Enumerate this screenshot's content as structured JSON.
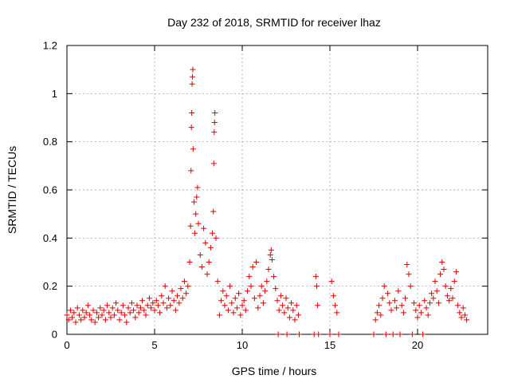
{
  "chart_data": {
    "type": "scatter",
    "title": "Day 232 of 2018, SRMTID for receiver lhaz",
    "xlabel": "GPS time / hours",
    "ylabel": "SRMTID / TECUs",
    "xlim": [
      0,
      24
    ],
    "ylim": [
      0,
      1.2
    ],
    "x_ticks": [
      0,
      5,
      10,
      15,
      20
    ],
    "y_ticks": [
      0,
      0.2,
      0.4,
      0.6,
      0.8,
      1,
      1.2
    ],
    "x_tick_labels": [
      "0",
      "5",
      "10",
      "15",
      "20"
    ],
    "y_tick_labels": [
      "0",
      "0.2",
      "0.4",
      "0.6",
      "0.8",
      "1",
      "1.2"
    ],
    "grid": true,
    "marker": "+",
    "color": "#e00000",
    "series": [
      {
        "name": "SRMTID",
        "points": [
          [
            0.0,
            0.08
          ],
          [
            0.1,
            0.06
          ],
          [
            0.2,
            0.1
          ],
          [
            0.3,
            0.07
          ],
          [
            0.4,
            0.09
          ],
          [
            0.5,
            0.05
          ],
          [
            0.6,
            0.11
          ],
          [
            0.7,
            0.08
          ],
          [
            0.8,
            0.06
          ],
          [
            0.9,
            0.1
          ],
          [
            1.0,
            0.07
          ],
          [
            1.1,
            0.09
          ],
          [
            1.2,
            0.12
          ],
          [
            1.3,
            0.08
          ],
          [
            1.4,
            0.06
          ],
          [
            1.5,
            0.1
          ],
          [
            1.6,
            0.05
          ],
          [
            1.7,
            0.09
          ],
          [
            1.8,
            0.07
          ],
          [
            1.9,
            0.11
          ],
          [
            2.0,
            0.08
          ],
          [
            2.1,
            0.1
          ],
          [
            2.2,
            0.06
          ],
          [
            2.3,
            0.12
          ],
          [
            2.4,
            0.09
          ],
          [
            2.5,
            0.07
          ],
          [
            2.6,
            0.11
          ],
          [
            2.7,
            0.08
          ],
          [
            2.8,
            0.13
          ],
          [
            2.9,
            0.1
          ],
          [
            3.0,
            0.06
          ],
          [
            3.1,
            0.09
          ],
          [
            3.2,
            0.12
          ],
          [
            3.3,
            0.08
          ],
          [
            3.4,
            0.05
          ],
          [
            3.5,
            0.11
          ],
          [
            3.6,
            0.09
          ],
          [
            3.7,
            0.13
          ],
          [
            3.8,
            0.1
          ],
          [
            3.9,
            0.07
          ],
          [
            4.0,
            0.12
          ],
          [
            4.1,
            0.09
          ],
          [
            4.2,
            0.11
          ],
          [
            4.3,
            0.14
          ],
          [
            4.4,
            0.1
          ],
          [
            4.5,
            0.08
          ],
          [
            4.6,
            0.12
          ],
          [
            4.7,
            0.15
          ],
          [
            4.8,
            0.11
          ],
          [
            4.9,
            0.13
          ],
          [
            5.0,
            0.1
          ],
          [
            5.1,
            0.14
          ],
          [
            5.2,
            0.12
          ],
          [
            5.3,
            0.09
          ],
          [
            5.4,
            0.16
          ],
          [
            5.5,
            0.13
          ],
          [
            5.6,
            0.2
          ],
          [
            5.7,
            0.11
          ],
          [
            5.8,
            0.15
          ],
          [
            5.9,
            0.12
          ],
          [
            6.0,
            0.18
          ],
          [
            6.1,
            0.14
          ],
          [
            6.2,
            0.1
          ],
          [
            6.3,
            0.16
          ],
          [
            6.4,
            0.13
          ],
          [
            6.5,
            0.19
          ],
          [
            6.6,
            0.15
          ],
          [
            6.7,
            0.22
          ],
          [
            6.8,
            0.17
          ],
          [
            6.9,
            0.2
          ],
          [
            7.0,
            0.3
          ],
          [
            7.05,
            0.45
          ],
          [
            7.08,
            0.68
          ],
          [
            7.1,
            0.86
          ],
          [
            7.12,
            0.92
          ],
          [
            7.14,
            1.04
          ],
          [
            7.16,
            1.07
          ],
          [
            7.18,
            1.1
          ],
          [
            7.2,
            0.77
          ],
          [
            7.25,
            0.55
          ],
          [
            7.3,
            0.42
          ],
          [
            7.35,
            0.5
          ],
          [
            7.4,
            0.57
          ],
          [
            7.45,
            0.61
          ],
          [
            7.5,
            0.46
          ],
          [
            7.6,
            0.33
          ],
          [
            7.7,
            0.28
          ],
          [
            7.8,
            0.44
          ],
          [
            7.9,
            0.38
          ],
          [
            8.0,
            0.25
          ],
          [
            8.1,
            0.3
          ],
          [
            8.2,
            0.36
          ],
          [
            8.3,
            0.42
          ],
          [
            8.35,
            0.51
          ],
          [
            8.38,
            0.71
          ],
          [
            8.4,
            0.84
          ],
          [
            8.42,
            0.88
          ],
          [
            8.44,
            0.92
          ],
          [
            8.5,
            0.4
          ],
          [
            8.6,
            0.22
          ],
          [
            8.7,
            0.08
          ],
          [
            8.8,
            0.14
          ],
          [
            8.9,
            0.18
          ],
          [
            9.0,
            0.12
          ],
          [
            9.1,
            0.16
          ],
          [
            9.2,
            0.1
          ],
          [
            9.3,
            0.2
          ],
          [
            9.4,
            0.13
          ],
          [
            9.5,
            0.09
          ],
          [
            9.6,
            0.15
          ],
          [
            9.7,
            0.11
          ],
          [
            9.8,
            0.17
          ],
          [
            9.9,
            0.08
          ],
          [
            10.0,
            0.12
          ],
          [
            10.1,
            0.14
          ],
          [
            10.2,
            0.1
          ],
          [
            10.3,
            0.18
          ],
          [
            10.4,
            0.24
          ],
          [
            10.5,
            0.2
          ],
          [
            10.6,
            0.28
          ],
          [
            10.7,
            0.15
          ],
          [
            10.8,
            0.3
          ],
          [
            10.9,
            0.11
          ],
          [
            11.0,
            0.16
          ],
          [
            11.1,
            0.2
          ],
          [
            11.2,
            0.13
          ],
          [
            11.3,
            0.18
          ],
          [
            11.4,
            0.22
          ],
          [
            11.5,
            0.27
          ],
          [
            11.6,
            0.33
          ],
          [
            11.65,
            0.35
          ],
          [
            11.7,
            0.31
          ],
          [
            11.8,
            0.24
          ],
          [
            11.9,
            0.19
          ],
          [
            12.0,
            0.14
          ],
          [
            12.05,
            0.0
          ],
          [
            12.1,
            0.1
          ],
          [
            12.2,
            0.16
          ],
          [
            12.3,
            0.12
          ],
          [
            12.4,
            0.09
          ],
          [
            12.5,
            0.15
          ],
          [
            12.55,
            0.0
          ],
          [
            12.6,
            0.11
          ],
          [
            12.7,
            0.07
          ],
          [
            12.8,
            0.13
          ],
          [
            12.9,
            0.1
          ],
          [
            13.0,
            0.06
          ],
          [
            13.1,
            0.12
          ],
          [
            13.2,
            0.08
          ],
          [
            13.25,
            0.0
          ],
          [
            14.1,
            0.0
          ],
          [
            14.2,
            0.24
          ],
          [
            14.25,
            0.2
          ],
          [
            14.3,
            0.12
          ],
          [
            14.35,
            0.0
          ],
          [
            15.0,
            0.0
          ],
          [
            15.1,
            0.22
          ],
          [
            15.2,
            0.16
          ],
          [
            15.3,
            0.12
          ],
          [
            15.4,
            0.09
          ],
          [
            15.5,
            0.0
          ],
          [
            17.5,
            0.0
          ],
          [
            17.6,
            0.06
          ],
          [
            17.7,
            0.09
          ],
          [
            17.8,
            0.12
          ],
          [
            17.9,
            0.08
          ],
          [
            18.0,
            0.15
          ],
          [
            18.1,
            0.2
          ],
          [
            18.2,
            0.0
          ],
          [
            18.3,
            0.17
          ],
          [
            18.4,
            0.13
          ],
          [
            18.5,
            0.1
          ],
          [
            18.6,
            0.0
          ],
          [
            18.7,
            0.14
          ],
          [
            18.8,
            0.11
          ],
          [
            18.9,
            0.18
          ],
          [
            19.0,
            0.0
          ],
          [
            19.1,
            0.12
          ],
          [
            19.2,
            0.09
          ],
          [
            19.3,
            0.15
          ],
          [
            19.4,
            0.29
          ],
          [
            19.5,
            0.25
          ],
          [
            19.6,
            0.2
          ],
          [
            19.7,
            0.0
          ],
          [
            19.8,
            0.13
          ],
          [
            19.9,
            0.1
          ],
          [
            20.0,
            0.07
          ],
          [
            20.1,
            0.12
          ],
          [
            20.2,
            0.09
          ],
          [
            20.3,
            0.0
          ],
          [
            20.4,
            0.14
          ],
          [
            20.5,
            0.11
          ],
          [
            20.6,
            0.08
          ],
          [
            20.7,
            0.13
          ],
          [
            20.8,
            0.17
          ],
          [
            20.9,
            0.15
          ],
          [
            21.0,
            0.22
          ],
          [
            21.1,
            0.18
          ],
          [
            21.2,
            0.13
          ],
          [
            21.3,
            0.25
          ],
          [
            21.4,
            0.3
          ],
          [
            21.5,
            0.27
          ],
          [
            21.6,
            0.2
          ],
          [
            21.7,
            0.16
          ],
          [
            21.8,
            0.14
          ],
          [
            21.9,
            0.19
          ],
          [
            22.0,
            0.15
          ],
          [
            22.1,
            0.22
          ],
          [
            22.2,
            0.26
          ],
          [
            22.3,
            0.12
          ],
          [
            22.4,
            0.09
          ],
          [
            22.5,
            0.07
          ],
          [
            22.6,
            0.11
          ],
          [
            22.7,
            0.08
          ],
          [
            22.8,
            0.06
          ]
        ]
      }
    ]
  }
}
